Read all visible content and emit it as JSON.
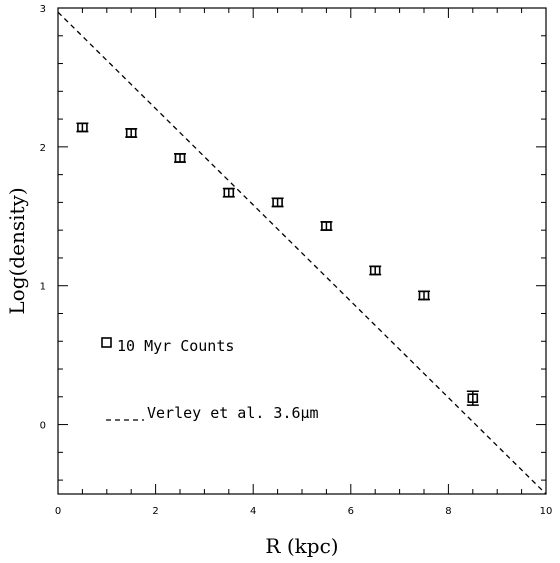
{
  "chart_data": {
    "type": "scatter",
    "xlabel": "R (kpc)",
    "ylabel": "Log(density)",
    "xlim": [
      0,
      10
    ],
    "ylim": [
      -0.5,
      3
    ],
    "x_ticks": [
      "0",
      "2",
      "4",
      "6",
      "8",
      "10"
    ],
    "y_ticks": [
      "0",
      "1",
      "2",
      "3"
    ],
    "grid": false,
    "legend_placement": "lower-left",
    "series": [
      {
        "name": "10 Myr Counts",
        "marker": "open-square",
        "x": [
          0.5,
          1.5,
          2.5,
          3.5,
          4.5,
          5.5,
          6.5,
          7.5,
          8.5
        ],
        "y": [
          2.14,
          2.1,
          1.92,
          1.67,
          1.6,
          1.43,
          1.11,
          0.93,
          0.19
        ],
        "err": [
          0.03,
          0.03,
          0.03,
          0.03,
          0.03,
          0.03,
          0.03,
          0.03,
          0.05
        ]
      },
      {
        "name": "Verley et al. 3.6μm",
        "style": "dashed-line",
        "x": [
          0,
          10
        ],
        "y": [
          2.97,
          -0.5
        ]
      }
    ]
  }
}
